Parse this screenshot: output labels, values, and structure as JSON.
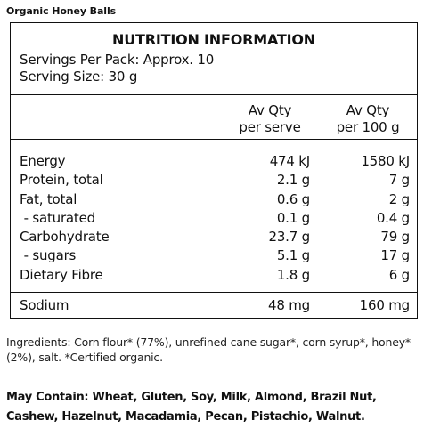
{
  "product": {
    "title": "Organic Honey Balls"
  },
  "panel": {
    "heading": "NUTRITION INFORMATION",
    "servings_per_pack": "Servings Per Pack: Approx. 10",
    "serving_size": "Serving Size: 30 g",
    "col_serve_line1": "Av Qty",
    "col_serve_line2": "per serve",
    "col_100_line1": "Av Qty",
    "col_100_line2": "per 100 g",
    "rows": [
      {
        "name": "Energy",
        "per_serve": "474 kJ",
        "per_100": "1580 kJ"
      },
      {
        "name": "Protein, total",
        "per_serve": "2.1 g",
        "per_100": "7 g"
      },
      {
        "name": "Fat, total",
        "per_serve": "0.6 g",
        "per_100": "2 g"
      },
      {
        "name": " - saturated",
        "per_serve": "0.1 g",
        "per_100": "0.4 g"
      },
      {
        "name": "Carbohydrate",
        "per_serve": "23.7 g",
        "per_100": "79 g"
      },
      {
        "name": " - sugars",
        "per_serve": "5.1 g",
        "per_100": "17 g"
      },
      {
        "name": "Dietary Fibre",
        "per_serve": "1.8 g",
        "per_100": "6 g"
      }
    ],
    "sodium": {
      "name": "Sodium",
      "per_serve": "48 mg",
      "per_100": "160 mg"
    }
  },
  "ingredients": {
    "text": "Ingredients: Corn flour* (77%), unrefined cane sugar*, corn syrup*, honey* (2%), salt. *Certified organic."
  },
  "allergens": {
    "text": "May Contain: Wheat, Gluten, Soy, Milk, Almond, Brazil Nut, Cashew, Hazelnut, Macadamia, Pecan, Pistachio, Walnut."
  }
}
